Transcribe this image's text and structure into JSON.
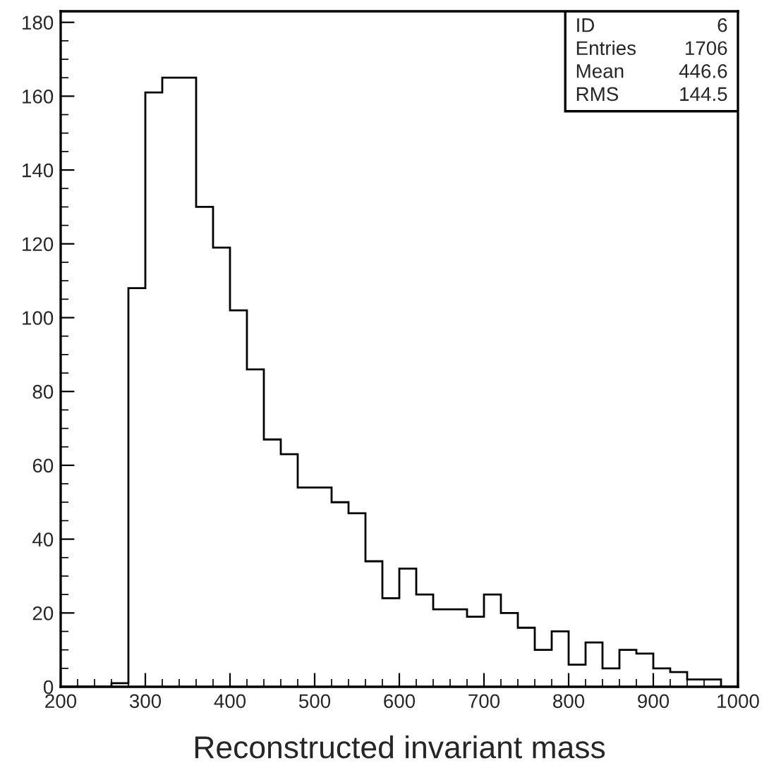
{
  "chart_data": {
    "type": "histogram",
    "xlabel": "Reconstructed invariant mass",
    "bins": [
      200,
      220,
      240,
      260,
      280,
      300,
      320,
      340,
      360,
      380,
      400,
      420,
      440,
      460,
      480,
      500,
      520,
      540,
      560,
      580,
      600,
      620,
      640,
      660,
      680,
      700,
      720,
      740,
      760,
      780,
      800,
      820,
      840,
      860,
      880,
      900,
      920,
      940,
      960,
      980,
      1000
    ],
    "values": [
      0,
      0,
      0,
      1,
      108,
      161,
      165,
      165,
      130,
      119,
      102,
      86,
      67,
      63,
      54,
      54,
      50,
      47,
      34,
      24,
      32,
      25,
      21,
      21,
      19,
      25,
      20,
      16,
      10,
      15,
      6,
      12,
      5,
      10,
      9,
      5,
      4,
      2,
      2,
      0
    ],
    "color": "#000000",
    "xlim": [
      200,
      1000
    ],
    "xticks": [
      200,
      300,
      400,
      500,
      600,
      700,
      800,
      900,
      1000
    ],
    "ylim": [
      0,
      183
    ],
    "yticks": [
      0,
      20,
      40,
      60,
      80,
      100,
      120,
      140,
      160,
      180
    ],
    "annotations": [
      "ID",
      "6",
      "Entries",
      "1706",
      "Mean",
      "446.6",
      "RMS",
      "144.5"
    ],
    "grid": false
  }
}
